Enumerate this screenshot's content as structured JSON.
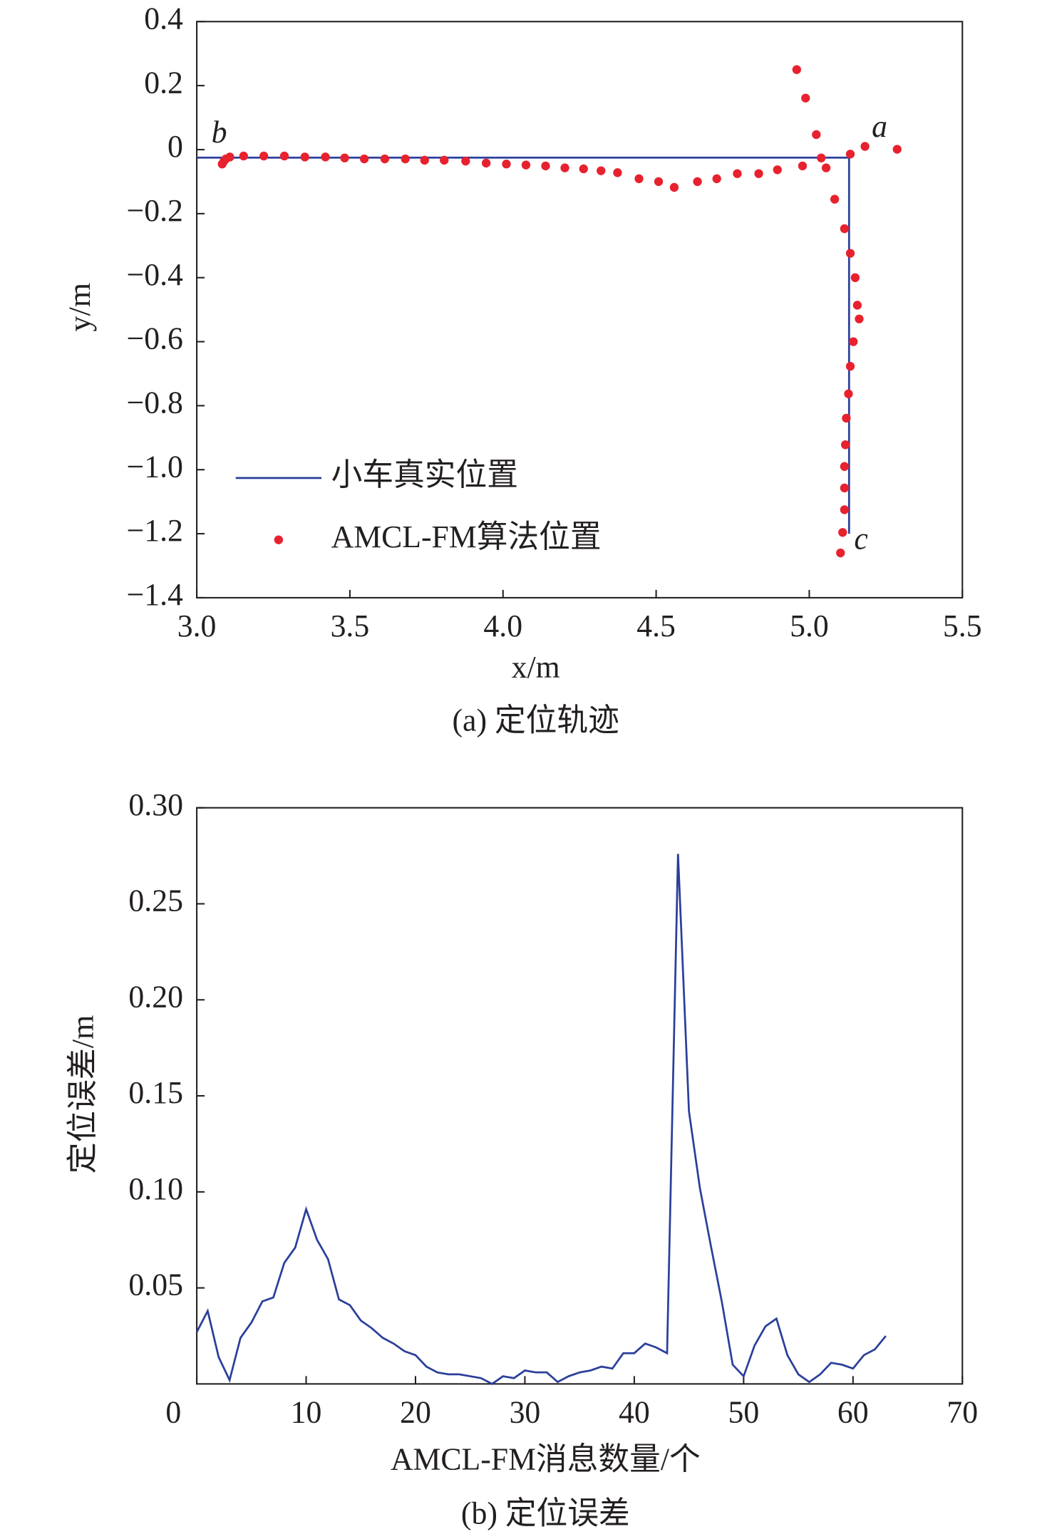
{
  "chart_data": [
    {
      "type": "scatter",
      "xlabel": "x/m",
      "ylabel": "y/m",
      "caption": "(a) 定位轨迹",
      "annotations": [
        "a",
        "b",
        "c"
      ],
      "xlim": [
        3.0,
        5.5
      ],
      "ylim": [
        -1.4,
        0.4
      ],
      "xticks": [
        {
          "value": 3.0,
          "label": "3.0"
        },
        3.5,
        {
          "value": 4.0,
          "label": "4.0"
        },
        4.5,
        {
          "value": 5.0,
          "label": "5.0"
        },
        5.5
      ],
      "yticks": [
        0.4,
        0.2,
        0,
        {
          "value": -0.2,
          "label": "−0.2"
        },
        {
          "value": -0.4,
          "label": "−0.4"
        },
        {
          "value": -0.6,
          "label": "−0.6"
        },
        {
          "value": -0.8,
          "label": "−0.8"
        },
        {
          "value": -1.0,
          "label": "−1.0"
        },
        {
          "value": -1.2,
          "label": "−1.2"
        },
        {
          "value": -1.4,
          "label": "−1.4"
        }
      ],
      "series": [
        {
          "name": "小车真实位置",
          "type": "line",
          "color": "#2b3f9a",
          "x": [
            3.0,
            5.13,
            5.13
          ],
          "values": [
            -0.025,
            -0.025,
            -1.2
          ]
        },
        {
          "name": "AMCL-FM算法位置",
          "type": "scatter",
          "color": "#e8212e",
          "x": [
            3.083,
            3.089,
            3.095,
            3.108,
            3.153,
            3.219,
            3.286,
            3.353,
            3.42,
            3.483,
            3.547,
            3.614,
            3.681,
            3.744,
            3.808,
            3.878,
            3.945,
            4.011,
            4.075,
            4.139,
            4.202,
            4.263,
            4.32,
            4.374,
            4.444,
            4.508,
            4.559,
            4.635,
            4.698,
            4.765,
            4.835,
            4.896,
            4.978,
            5.055,
            5.039,
            5.023,
            4.988,
            4.959,
            5.134,
            5.182,
            5.287,
            5.083,
            5.115,
            5.134,
            5.15,
            5.157,
            5.163,
            5.144,
            5.134,
            5.128,
            5.121,
            5.118,
            5.115,
            5.115,
            5.115,
            5.109,
            5.102
          ],
          "values": [
            -0.045,
            -0.036,
            -0.029,
            -0.023,
            -0.02,
            -0.02,
            -0.02,
            -0.023,
            -0.023,
            -0.026,
            -0.029,
            -0.029,
            -0.029,
            -0.033,
            -0.033,
            -0.036,
            -0.042,
            -0.045,
            -0.048,
            -0.051,
            -0.057,
            -0.06,
            -0.066,
            -0.072,
            -0.091,
            -0.1,
            -0.118,
            -0.1,
            -0.091,
            -0.075,
            -0.075,
            -0.063,
            -0.051,
            -0.057,
            -0.026,
            0.047,
            0.161,
            0.25,
            -0.014,
            0.01,
            0.001,
            -0.155,
            -0.247,
            -0.324,
            -0.4,
            -0.486,
            -0.529,
            -0.6,
            -0.677,
            -0.763,
            -0.839,
            -0.922,
            -0.99,
            -1.057,
            -1.125,
            -1.196,
            -1.26
          ]
        }
      ]
    },
    {
      "type": "line",
      "xlabel": "AMCL-FM消息数量/个",
      "ylabel": "定位误差/m",
      "caption": "(b) 定位误差",
      "xlim": [
        0,
        70
      ],
      "ylim": [
        0,
        0.3
      ],
      "xticks": [
        0,
        10,
        20,
        30,
        40,
        50,
        60,
        70
      ],
      "yticks": [
        0.05,
        {
          "value": 0.1,
          "label": "0.10"
        },
        0.15,
        {
          "value": 0.2,
          "label": "0.20"
        },
        0.25,
        {
          "value": 0.3,
          "label": "0.30"
        }
      ],
      "color": "#2b3f9a",
      "x": [
        0,
        1,
        2,
        3,
        4,
        5,
        6,
        7,
        8,
        9,
        10,
        11,
        12,
        13,
        14,
        15,
        16,
        17,
        18,
        19,
        20,
        21,
        22,
        23,
        24,
        25,
        26,
        27,
        28,
        29,
        30,
        31,
        32,
        33,
        34,
        35,
        36,
        37,
        38,
        39,
        40,
        41,
        42,
        43,
        44,
        45,
        46,
        47,
        48,
        49,
        50,
        51,
        52,
        53,
        54,
        55,
        56,
        57,
        58,
        59,
        60,
        61,
        62,
        63
      ],
      "values": [
        0.027,
        0.038,
        0.014,
        0.002,
        0.024,
        0.032,
        0.043,
        0.045,
        0.063,
        0.071,
        0.091,
        0.075,
        0.065,
        0.044,
        0.041,
        0.033,
        0.029,
        0.024,
        0.021,
        0.017,
        0.015,
        0.009,
        0.006,
        0.005,
        0.005,
        0.004,
        0.003,
        0.0,
        0.004,
        0.003,
        0.007,
        0.006,
        0.006,
        0.001,
        0.004,
        0.006,
        0.007,
        0.009,
        0.008,
        0.016,
        0.016,
        0.021,
        0.019,
        0.016,
        0.276,
        0.142,
        0.102,
        0.072,
        0.043,
        0.01,
        0.004,
        0.02,
        0.03,
        0.034,
        0.015,
        0.005,
        0.001,
        0.005,
        0.011,
        0.01,
        0.008,
        0.015,
        0.018,
        0.025
      ]
    }
  ]
}
